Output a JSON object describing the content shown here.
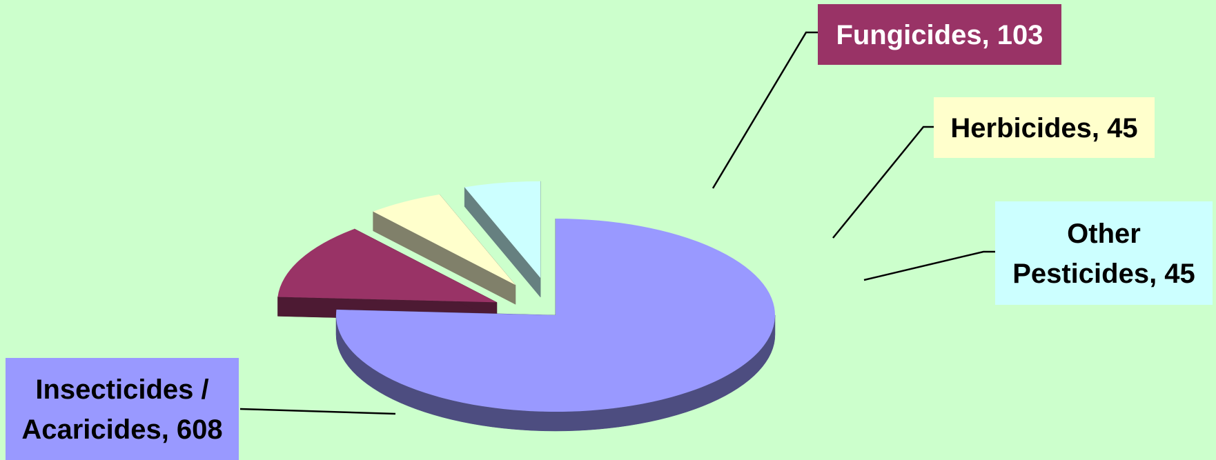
{
  "chart_data": {
    "type": "pie",
    "title": "",
    "slices": [
      {
        "label": "Insecticides / Acaricides",
        "label_lines": [
          "Insecticides /",
          "Acaricides, 608"
        ],
        "value": 608,
        "color": "#9999ff",
        "side_color": "#4d4d80",
        "label_bg": "#9999ff",
        "label_color": "#000000"
      },
      {
        "label": "Fungicides",
        "label_lines": [
          "Fungicides, 103"
        ],
        "value": 103,
        "color": "#993366",
        "side_color": "#4d1a33",
        "label_bg": "#993366",
        "label_color": "#ffffff"
      },
      {
        "label": "Herbicides",
        "label_lines": [
          "Herbicides, 45"
        ],
        "value": 45,
        "color": "#ffffcc",
        "side_color": "#80806a",
        "label_bg": "#ffffcc",
        "label_color": "#000000"
      },
      {
        "label": "Other Pesticides",
        "label_lines": [
          "Other",
          "Pesticides, 45"
        ],
        "value": 45,
        "color": "#ccffff",
        "side_color": "#668080",
        "label_bg": "#ccffff",
        "label_color": "#000000"
      }
    ],
    "exploded": [
      "Fungicides",
      "Herbicides",
      "Other Pesticides"
    ],
    "style": "3d-exploded",
    "background": "#ccffcc",
    "legend": "none"
  }
}
